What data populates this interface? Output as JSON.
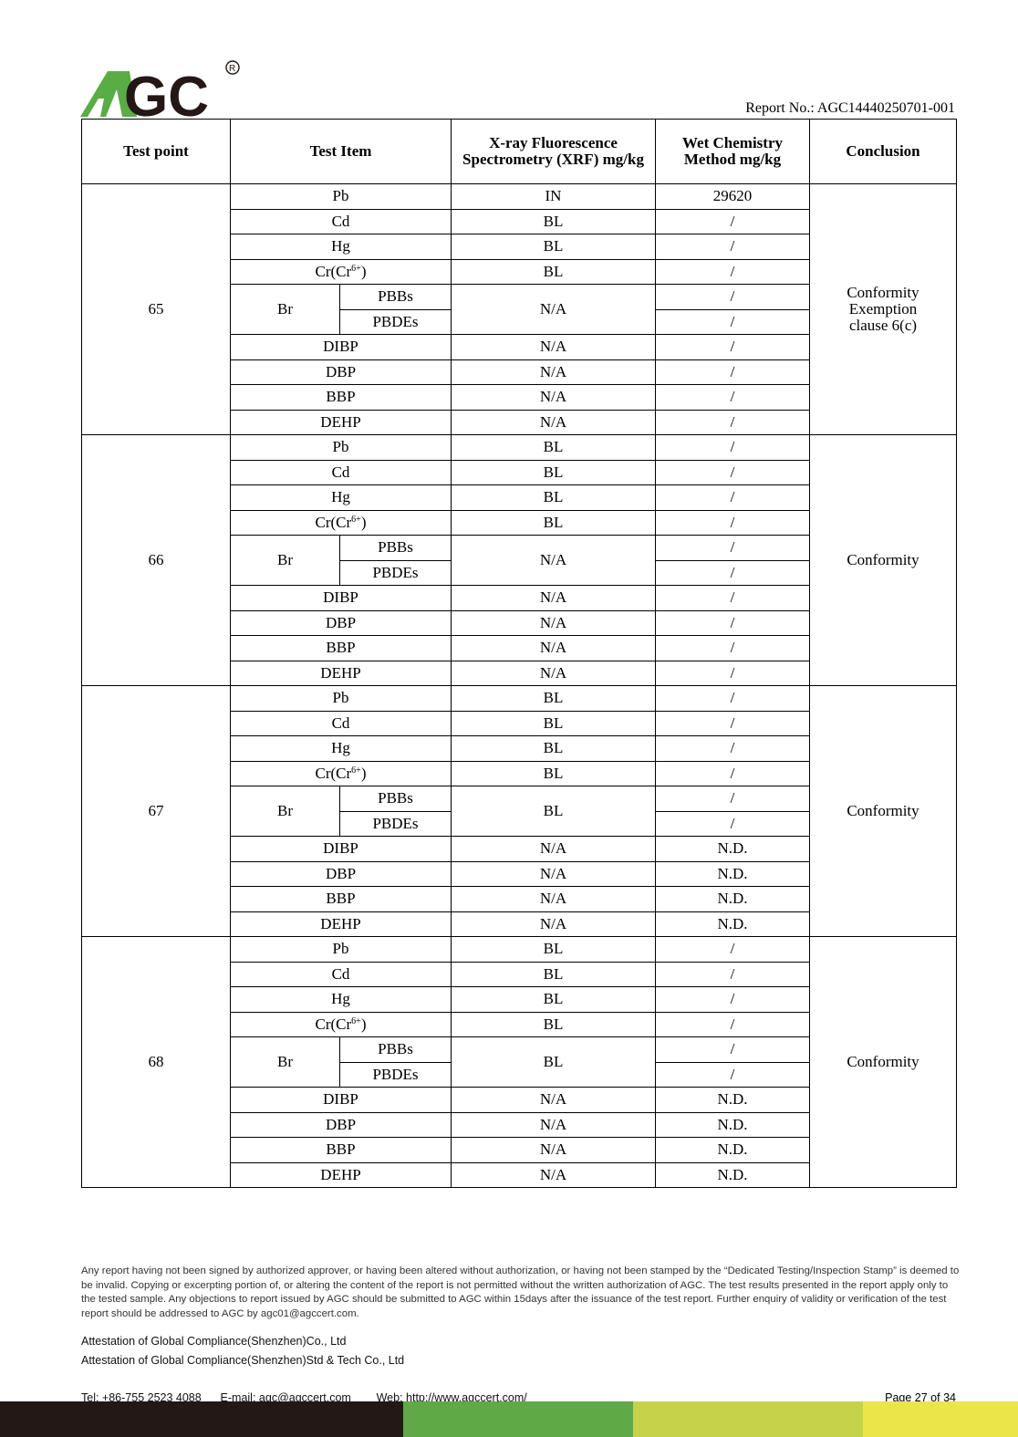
{
  "header": {
    "logo_text": "AGC",
    "report_no": "Report No.: AGC14440250701-001"
  },
  "colors": {
    "logo_green": "#5aac44",
    "bar_black": "#231815",
    "bar_green": "#5fa946",
    "bar_lime": "#c5d34a",
    "bar_yellow": "#ece54a"
  },
  "table": {
    "headers": {
      "test_point": "Test point",
      "test_item": "Test Item",
      "xrf": "X-ray Fluorescence Spectrometry (XRF) mg/kg",
      "wet": "Wet Chemistry Method mg/kg",
      "conclusion": "Conclusion"
    },
    "br_label": "Br",
    "groups": [
      {
        "point": "65",
        "conclusion": "Conformity Exemption clause 6(c)",
        "rows": [
          {
            "item": "Pb",
            "xrf": "IN",
            "wet": "29620"
          },
          {
            "item": "Cd",
            "xrf": "BL",
            "wet": "/"
          },
          {
            "item": "Hg",
            "xrf": "BL",
            "wet": "/"
          },
          {
            "item": "Cr(Cr",
            "sup": "6+",
            "tail": ")",
            "xrf": "BL",
            "wet": "/"
          },
          {
            "item": "PBBs",
            "br": true,
            "xrf": "N/A",
            "wet": "/"
          },
          {
            "item": "PBDEs",
            "br": true,
            "wet": "/"
          },
          {
            "item": "DIBP",
            "xrf": "N/A",
            "wet": "/"
          },
          {
            "item": "DBP",
            "xrf": "N/A",
            "wet": "/"
          },
          {
            "item": "BBP",
            "xrf": "N/A",
            "wet": "/"
          },
          {
            "item": "DEHP",
            "xrf": "N/A",
            "wet": "/"
          }
        ]
      },
      {
        "point": "66",
        "conclusion": "Conformity",
        "rows": [
          {
            "item": "Pb",
            "xrf": "BL",
            "wet": "/"
          },
          {
            "item": "Cd",
            "xrf": "BL",
            "wet": "/"
          },
          {
            "item": "Hg",
            "xrf": "BL",
            "wet": "/"
          },
          {
            "item": "Cr(Cr",
            "sup": "6+",
            "tail": ")",
            "xrf": "BL",
            "wet": "/"
          },
          {
            "item": "PBBs",
            "br": true,
            "xrf": "N/A",
            "wet": "/"
          },
          {
            "item": "PBDEs",
            "br": true,
            "wet": "/"
          },
          {
            "item": "DIBP",
            "xrf": "N/A",
            "wet": "/"
          },
          {
            "item": "DBP",
            "xrf": "N/A",
            "wet": "/"
          },
          {
            "item": "BBP",
            "xrf": "N/A",
            "wet": "/"
          },
          {
            "item": "DEHP",
            "xrf": "N/A",
            "wet": "/"
          }
        ]
      },
      {
        "point": "67",
        "conclusion": "Conformity",
        "rows": [
          {
            "item": "Pb",
            "xrf": "BL",
            "wet": "/"
          },
          {
            "item": "Cd",
            "xrf": "BL",
            "wet": "/"
          },
          {
            "item": "Hg",
            "xrf": "BL",
            "wet": "/"
          },
          {
            "item": "Cr(Cr",
            "sup": "6+",
            "tail": ")",
            "xrf": "BL",
            "wet": "/"
          },
          {
            "item": "PBBs",
            "br": true,
            "xrf": "BL",
            "wet": "/"
          },
          {
            "item": "PBDEs",
            "br": true,
            "wet": "/"
          },
          {
            "item": "DIBP",
            "xrf": "N/A",
            "wet": "N.D."
          },
          {
            "item": "DBP",
            "xrf": "N/A",
            "wet": "N.D."
          },
          {
            "item": "BBP",
            "xrf": "N/A",
            "wet": "N.D."
          },
          {
            "item": "DEHP",
            "xrf": "N/A",
            "wet": "N.D."
          }
        ]
      },
      {
        "point": "68",
        "conclusion": "Conformity",
        "rows": [
          {
            "item": "Pb",
            "xrf": "BL",
            "wet": "/"
          },
          {
            "item": "Cd",
            "xrf": "BL",
            "wet": "/"
          },
          {
            "item": "Hg",
            "xrf": "BL",
            "wet": "/"
          },
          {
            "item": "Cr(Cr",
            "sup": "6+",
            "tail": ")",
            "xrf": "BL",
            "wet": "/"
          },
          {
            "item": "PBBs",
            "br": true,
            "xrf": "BL",
            "wet": "/"
          },
          {
            "item": "PBDEs",
            "br": true,
            "wet": "/"
          },
          {
            "item": "DIBP",
            "xrf": "N/A",
            "wet": "N.D."
          },
          {
            "item": "DBP",
            "xrf": "N/A",
            "wet": "N.D."
          },
          {
            "item": "BBP",
            "xrf": "N/A",
            "wet": "N.D."
          },
          {
            "item": "DEHP",
            "xrf": "N/A",
            "wet": "N.D."
          }
        ]
      }
    ]
  },
  "footer": {
    "disclaimer": "Any report having not been signed by authorized approver, or having been altered without authorization, or having not been stamped by the “Dedicated Testing/Inspection Stamp” is deemed to be invalid. Copying or excerpting portion of, or altering the content of the report is not permitted without the written authorization of AGC. The test results presented in the report apply only to the tested sample. Any objections to report issued by AGC should be submitted to AGC within 15days after the issuance of the test report. Further enquiry of validity or verification of the test report should be addressed to AGC by agc01@agccert.com.",
    "company1": "Attestation of Global Compliance(Shenzhen)Co., Ltd",
    "company2": "Attestation of Global Compliance(Shenzhen)Std & Tech Co., Ltd",
    "contact": "Tel: +86-755 2523 4088      E-mail: agc@agccert.com        Web: http://www.agccert.com/",
    "page": "Page 27 of 34"
  }
}
